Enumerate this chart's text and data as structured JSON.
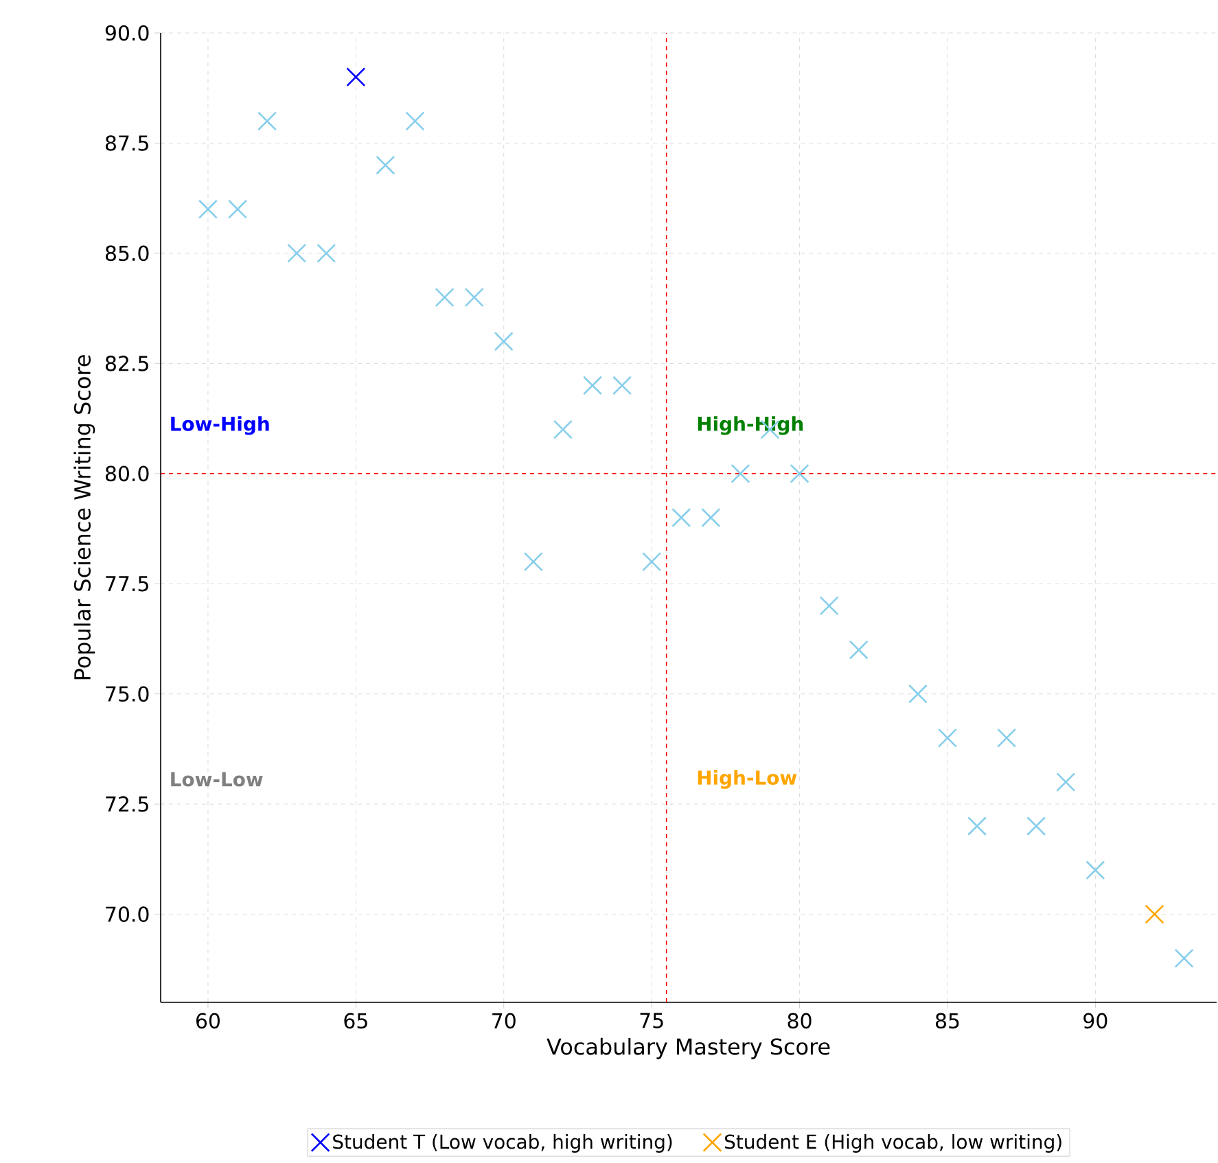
{
  "chart_data": {
    "type": "scatter",
    "xlabel": "Vocabulary Mastery Score",
    "ylabel": "Popular Science Writing Score",
    "xlim": [
      58.4,
      94.1
    ],
    "ylim": [
      68.0,
      90.0
    ],
    "xticks": [
      60,
      65,
      70,
      75,
      80,
      85,
      90
    ],
    "yticks": [
      {
        "value": 70,
        "label": "70.0"
      },
      {
        "value": 72.5,
        "label": "72.5"
      },
      {
        "value": 75,
        "label": "75.0"
      },
      {
        "value": 77.5,
        "label": "77.5"
      },
      {
        "value": 80,
        "label": "80.0"
      },
      {
        "value": 82.5,
        "label": "82.5"
      },
      {
        "value": 85,
        "label": "85.0"
      },
      {
        "value": 87.5,
        "label": "87.5"
      },
      {
        "value": 90,
        "label": "90.0"
      }
    ],
    "grid": true,
    "marker": "cross",
    "legend": "bottom",
    "series": [
      {
        "color": "#87ceeb",
        "x": [
          60,
          61,
          62,
          63,
          64,
          66,
          67,
          68,
          69,
          70,
          71,
          72,
          73,
          74,
          75,
          76,
          77,
          78,
          79,
          80,
          81,
          82,
          84,
          85,
          86,
          87,
          88,
          89,
          90,
          93
        ],
        "values": [
          86,
          86,
          88,
          85,
          85,
          87,
          88,
          84,
          84,
          83,
          78,
          81,
          82,
          82,
          78,
          79,
          79,
          80,
          81,
          80,
          77,
          76,
          75,
          74,
          72,
          74,
          72,
          73,
          71,
          69
        ]
      },
      {
        "name": "Student T (Low vocab, high writing)",
        "color": "#0000ff",
        "x": [
          65
        ],
        "values": [
          89
        ]
      },
      {
        "name": "Student E (High vocab, low writing)",
        "color": "#ffa500",
        "x": [
          92
        ],
        "values": [
          70
        ]
      }
    ],
    "ref_lines": [
      {
        "axis": "x",
        "value": 75.5,
        "color": "#ff0000",
        "line_style": "dashed"
      },
      {
        "axis": "y",
        "value": 80,
        "color": "#ff0000",
        "line_style": "dashed"
      }
    ],
    "annotations": [
      "Low-High",
      "High-High",
      "Low-Low",
      "High-Low"
    ]
  }
}
